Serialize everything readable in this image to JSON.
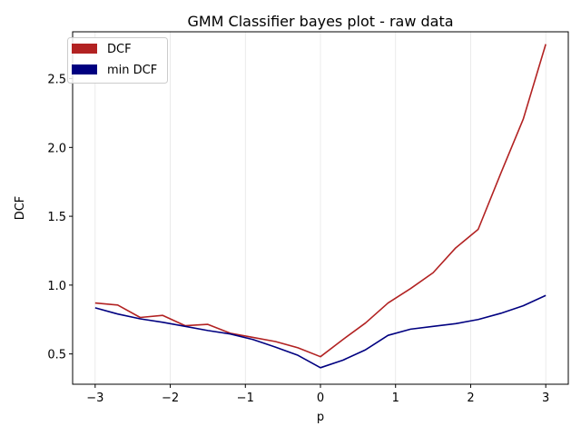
{
  "chart_data": {
    "type": "line",
    "title": "GMM Classifier bayes plot - raw data",
    "xlabel": "p",
    "ylabel": "DCF",
    "xlim": [
      -3.3,
      3.3
    ],
    "ylim": [
      0.28,
      2.84
    ],
    "xticks": [
      -3,
      -2,
      -1,
      0,
      1,
      2,
      3
    ],
    "xtick_labels": [
      "−3",
      "−2",
      "−1",
      "0",
      "1",
      "2",
      "3"
    ],
    "yticks": [
      0.5,
      1.0,
      1.5,
      2.0,
      2.5
    ],
    "ytick_labels": [
      "0.5",
      "1.0",
      "1.5",
      "2.0",
      "2.5"
    ],
    "grid": "vertical",
    "legend_position": "top-left",
    "x": [
      -3.0,
      -2.7,
      -2.4,
      -2.1,
      -1.8,
      -1.5,
      -1.2,
      -0.9,
      -0.6,
      -0.3,
      0.0,
      0.3,
      0.6,
      0.9,
      1.2,
      1.5,
      1.8,
      2.1,
      2.4,
      2.7,
      3.0
    ],
    "series": [
      {
        "name": "DCF",
        "color": "#b22222",
        "values": [
          0.87,
          0.855,
          0.765,
          0.78,
          0.705,
          0.715,
          0.65,
          0.62,
          0.59,
          0.545,
          0.48,
          0.605,
          0.725,
          0.87,
          0.975,
          1.09,
          1.27,
          1.405,
          1.81,
          2.205,
          2.75
        ]
      },
      {
        "name": "min DCF",
        "color": "#000080",
        "values": [
          0.835,
          0.79,
          0.755,
          0.73,
          0.7,
          0.67,
          0.645,
          0.605,
          0.55,
          0.49,
          0.4,
          0.455,
          0.53,
          0.635,
          0.68,
          0.7,
          0.72,
          0.75,
          0.795,
          0.85,
          0.925
        ]
      }
    ]
  }
}
